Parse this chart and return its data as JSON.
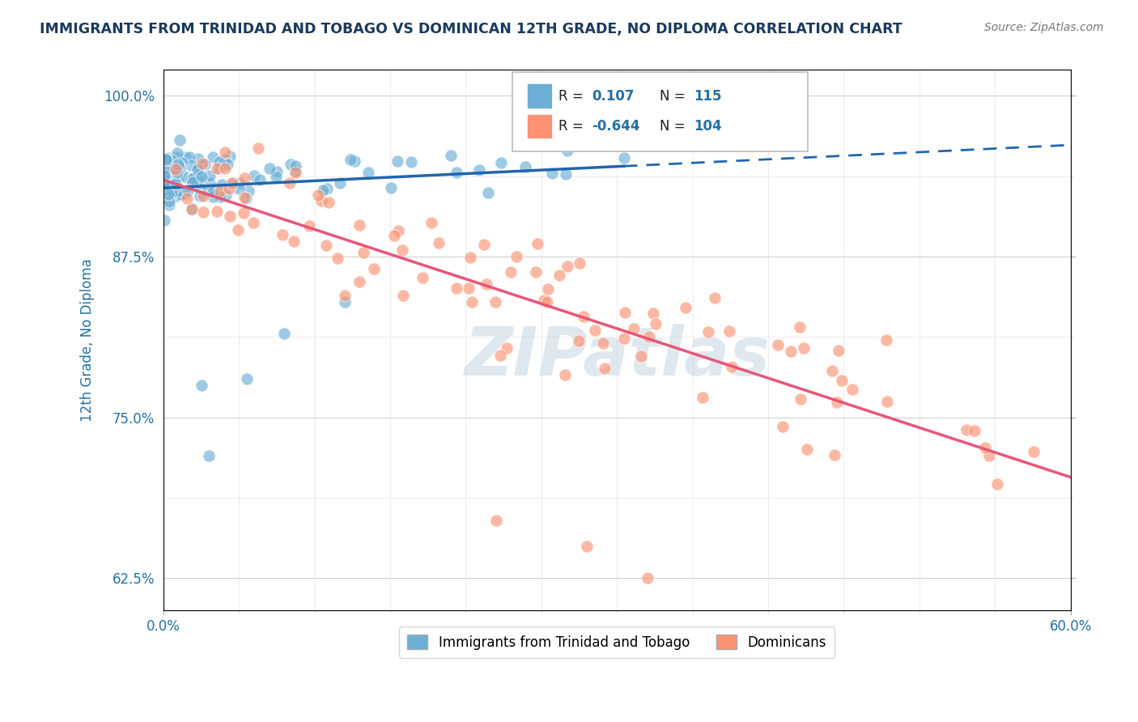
{
  "title": "IMMIGRANTS FROM TRINIDAD AND TOBAGO VS DOMINICAN 12TH GRADE, NO DIPLOMA CORRELATION CHART",
  "source_text": "Source: ZipAtlas.com",
  "ylabel": "12th Grade, No Diploma",
  "xlim": [
    0.0,
    60.0
  ],
  "ylim": [
    60.0,
    102.0
  ],
  "y_ticks": [
    62.5,
    75.0,
    87.5,
    100.0
  ],
  "blue_R": 0.107,
  "blue_N": 115,
  "pink_R": -0.644,
  "pink_N": 104,
  "blue_color": "#6baed6",
  "pink_color": "#fc9272",
  "blue_line_color": "#2166ac",
  "pink_line_color": "#e8567a",
  "legend_label_blue": "Immigrants from Trinidad and Tobago",
  "legend_label_pink": "Dominicans",
  "watermark": "ZIPatlas",
  "title_color": "#1a3a5c",
  "axis_label_color": "#2471a3",
  "tick_color": "#2471a3"
}
